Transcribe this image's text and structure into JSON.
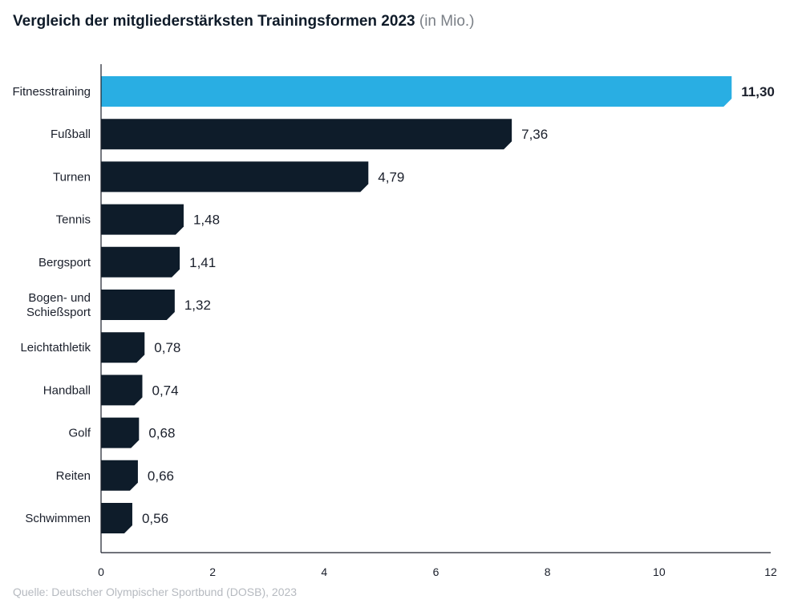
{
  "title": {
    "main": "Vergleich der mitgliederstärksten Trainingsformen 2023",
    "unit": "(in Mio.)"
  },
  "source": "Quelle: Deutscher Olympischer Sportbund (DOSB), 2023",
  "colors": {
    "highlight": "#29aee3",
    "bar": "#0e1c2a",
    "axis": "#1a1f2b"
  },
  "chart_data": {
    "type": "bar",
    "orientation": "horizontal",
    "categories": [
      [
        "Fitnesstraining"
      ],
      [
        "Fußball"
      ],
      [
        "Turnen"
      ],
      [
        "Tennis"
      ],
      [
        "Bergsport"
      ],
      [
        "Bogen- und",
        "Schießsport"
      ],
      [
        "Leichtathletik"
      ],
      [
        "Handball"
      ],
      [
        "Golf"
      ],
      [
        "Reiten"
      ],
      [
        "Schwimmen"
      ]
    ],
    "values": [
      11.3,
      7.36,
      4.79,
      1.48,
      1.41,
      1.32,
      0.78,
      0.74,
      0.68,
      0.66,
      0.56
    ],
    "value_labels": [
      "11,30",
      "7,36",
      "4,79",
      "1,48",
      "1,41",
      "1,32",
      "0,78",
      "0,74",
      "0,68",
      "0,66",
      "0,56"
    ],
    "highlight_index": 0,
    "xlim": [
      0,
      12
    ],
    "xticks": [
      0,
      2,
      4,
      6,
      8,
      10,
      12
    ],
    "grid": false
  }
}
